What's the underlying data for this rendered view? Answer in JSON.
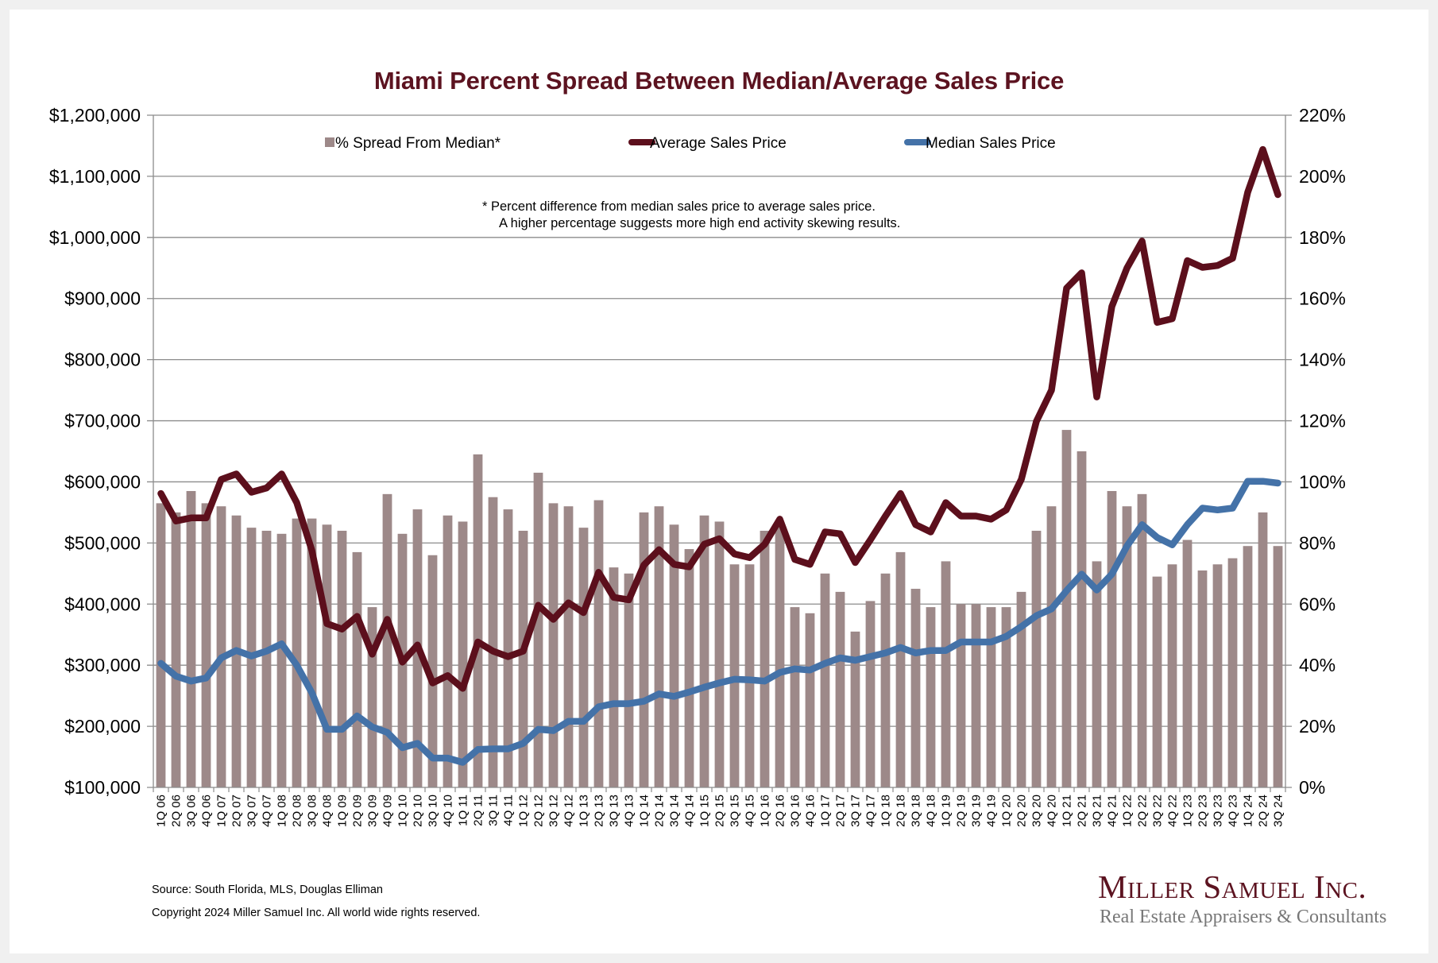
{
  "footer": {
    "source": "Source: South Florida, MLS, Douglas Elliman",
    "copyright": "Copyright 2024 Miller Samuel Inc.  All world wide rights reserved."
  },
  "logo": {
    "name": "Miller Samuel Inc.",
    "tagline": "Real Estate Appraisers & Consultants"
  },
  "chart_data": {
    "type": "bar",
    "title": "Miami Percent Spread Between Median/Average Sales Price",
    "note": [
      "*  Percent difference from median sales price to average sales price.",
      "A higher percentage suggests more high end activity skewing results."
    ],
    "legend_position": "top",
    "grid": true,
    "xlabel": "",
    "ylabel": "",
    "ylim": [
      100000,
      1200000
    ],
    "y2lim": [
      0,
      220
    ],
    "yticks": [
      "$100,000",
      "$200,000",
      "$300,000",
      "$400,000",
      "$500,000",
      "$600,000",
      "$700,000",
      "$800,000",
      "$900,000",
      "$1,000,000",
      "$1,100,000",
      "$1,200,000"
    ],
    "y2ticks": [
      "0%",
      "20%",
      "40%",
      "60%",
      "80%",
      "100%",
      "120%",
      "140%",
      "160%",
      "180%",
      "200%",
      "220%"
    ],
    "categories": [
      "1Q 06",
      "2Q 06",
      "3Q 06",
      "4Q 06",
      "1Q 07",
      "2Q 07",
      "3Q 07",
      "4Q 07",
      "1Q 08",
      "2Q 08",
      "3Q 08",
      "4Q 08",
      "1Q 09",
      "2Q 09",
      "3Q 09",
      "4Q 09",
      "1Q 10",
      "2Q 10",
      "3Q 10",
      "4Q 10",
      "1Q 11",
      "2Q 11",
      "3Q 11",
      "4Q 11",
      "1Q 12",
      "2Q 12",
      "3Q 12",
      "4Q 12",
      "1Q 13",
      "2Q 13",
      "3Q 13",
      "4Q 13",
      "1Q 14",
      "2Q 14",
      "3Q 14",
      "4Q 14",
      "1Q 15",
      "2Q 15",
      "3Q 15",
      "4Q 15",
      "1Q 16",
      "2Q 16",
      "3Q 16",
      "4Q 16",
      "1Q 17",
      "2Q 17",
      "3Q 17",
      "4Q 17",
      "1Q 18",
      "2Q 18",
      "3Q 18",
      "4Q 18",
      "1Q 19",
      "2Q 19",
      "3Q 19",
      "4Q 19",
      "1Q 20",
      "2Q 20",
      "3Q 20",
      "4Q 20",
      "1Q 21",
      "2Q 21",
      "3Q 21",
      "4Q 21",
      "1Q 22",
      "2Q 22",
      "3Q 22",
      "4Q 22",
      "1Q 23",
      "2Q 23",
      "3Q 23",
      "4Q 23",
      "1Q 24",
      "2Q 24",
      "3Q 24"
    ],
    "series": [
      {
        "name": "% Spread From Median*",
        "type": "bar",
        "axis": "right",
        "unit": "%",
        "color": "#9d8989",
        "values": [
          93,
          90,
          97,
          93,
          92,
          89,
          85,
          84,
          83,
          88,
          88,
          86,
          84,
          77,
          59,
          96,
          83,
          91,
          76,
          89,
          87,
          109,
          95,
          91,
          84,
          103,
          93,
          92,
          85,
          94,
          72,
          70,
          90,
          92,
          86,
          78,
          89,
          87,
          73,
          73,
          84,
          86,
          59,
          57,
          70,
          64,
          51,
          61,
          70,
          77,
          65,
          59,
          74,
          60,
          60,
          59,
          59,
          64,
          84,
          92,
          117,
          110,
          74,
          97,
          92,
          96,
          69,
          73,
          81,
          71,
          73,
          75,
          79,
          90,
          79
        ]
      },
      {
        "name": "Average Sales Price",
        "type": "line",
        "axis": "left",
        "color": "#5c0f1c",
        "values": [
          581000,
          536000,
          541000,
          541000,
          604000,
          613000,
          583000,
          590000,
          613000,
          566000,
          488000,
          368000,
          359000,
          380000,
          318000,
          375000,
          305000,
          333000,
          271000,
          283000,
          262000,
          338000,
          323000,
          314000,
          323000,
          398000,
          375000,
          402000,
          386000,
          452000,
          411000,
          407000,
          464000,
          489000,
          465000,
          461000,
          498000,
          507000,
          482000,
          476000,
          498000,
          539000,
          473000,
          465000,
          518000,
          515000,
          468000,
          505000,
          544000,
          581000,
          530000,
          518000,
          566000,
          544000,
          544000,
          539000,
          554000,
          604000,
          699000,
          750000,
          917000,
          942000,
          739000,
          887000,
          950000,
          994000,
          861000,
          867000,
          962000,
          951000,
          954000,
          966000,
          1074000,
          1144000,
          1070000
        ]
      },
      {
        "name": "Median Sales Price",
        "type": "line",
        "axis": "left",
        "color": "#4472a8",
        "values": [
          303000,
          282000,
          274000,
          279000,
          312000,
          324000,
          315000,
          323000,
          335000,
          300000,
          255000,
          195000,
          195000,
          217000,
          199000,
          190000,
          165000,
          172000,
          148000,
          148000,
          141000,
          162000,
          163000,
          163000,
          172000,
          195000,
          193000,
          208000,
          208000,
          232000,
          237000,
          237000,
          241000,
          253000,
          249000,
          256000,
          264000,
          271000,
          277000,
          276000,
          274000,
          288000,
          294000,
          292000,
          303000,
          312000,
          308000,
          314000,
          320000,
          329000,
          320000,
          324000,
          324000,
          338000,
          338000,
          338000,
          347000,
          363000,
          381000,
          392000,
          422000,
          449000,
          423000,
          449000,
          495000,
          530000,
          509000,
          497000,
          530000,
          557000,
          554000,
          557000,
          601000,
          601000,
          598000
        ]
      }
    ]
  }
}
